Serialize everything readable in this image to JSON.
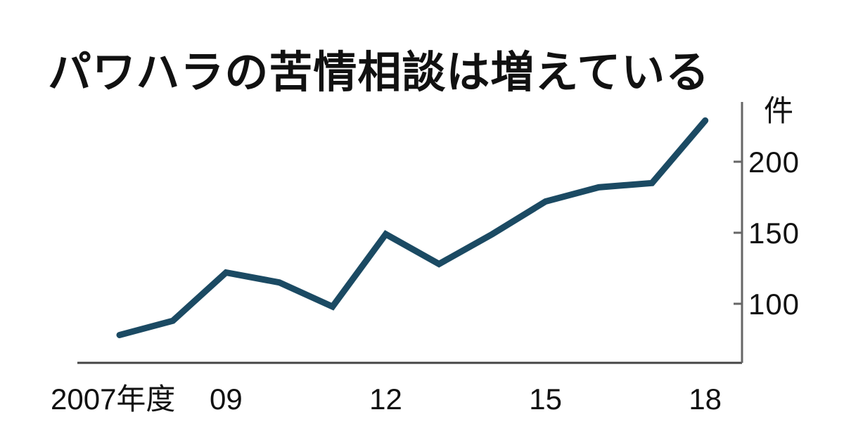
{
  "chart_data": {
    "type": "line",
    "title": "パワハラの苦情相談は増えている",
    "unit_label": "件",
    "x": [
      2007,
      2008,
      2009,
      2010,
      2011,
      2012,
      2013,
      2014,
      2015,
      2016,
      2017,
      2018
    ],
    "x_tick_labels": [
      {
        "x": 2007,
        "label": "2007年度"
      },
      {
        "x": 2009,
        "label": "09"
      },
      {
        "x": 2012,
        "label": "12"
      },
      {
        "x": 2015,
        "label": "15"
      },
      {
        "x": 2018,
        "label": "18"
      }
    ],
    "y_ticks": [
      100,
      150,
      200
    ],
    "y_tick_labels": [
      "100",
      "150",
      "200"
    ],
    "series": [
      {
        "values": [
          78,
          88,
          122,
          115,
          98,
          149,
          128,
          149,
          172,
          182,
          185,
          229
        ],
        "color": "#1b4a63"
      }
    ],
    "ylim": [
      58,
      242
    ],
    "y_axis_position": "right",
    "grid": false,
    "legend": "none"
  }
}
